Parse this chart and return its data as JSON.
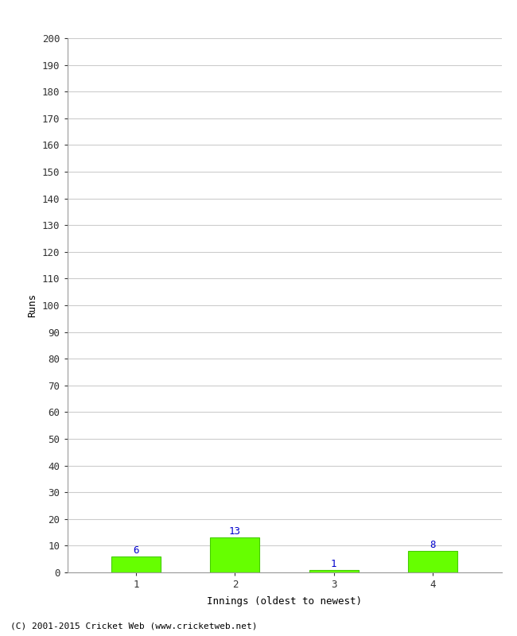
{
  "innings": [
    1,
    2,
    3,
    4
  ],
  "runs": [
    6,
    13,
    1,
    8
  ],
  "bar_color": "#66ff00",
  "bar_edgecolor": "#44cc00",
  "value_color": "#0000cc",
  "xlabel": "Innings (oldest to newest)",
  "ylabel": "Runs",
  "ylim": [
    0,
    200
  ],
  "yticks": [
    0,
    10,
    20,
    30,
    40,
    50,
    60,
    70,
    80,
    90,
    100,
    110,
    120,
    130,
    140,
    150,
    160,
    170,
    180,
    190,
    200
  ],
  "footer": "(C) 2001-2015 Cricket Web (www.cricketweb.net)",
  "background_color": "#ffffff",
  "grid_color": "#cccccc",
  "font_family": "DejaVu Sans Mono",
  "bar_width": 0.5
}
